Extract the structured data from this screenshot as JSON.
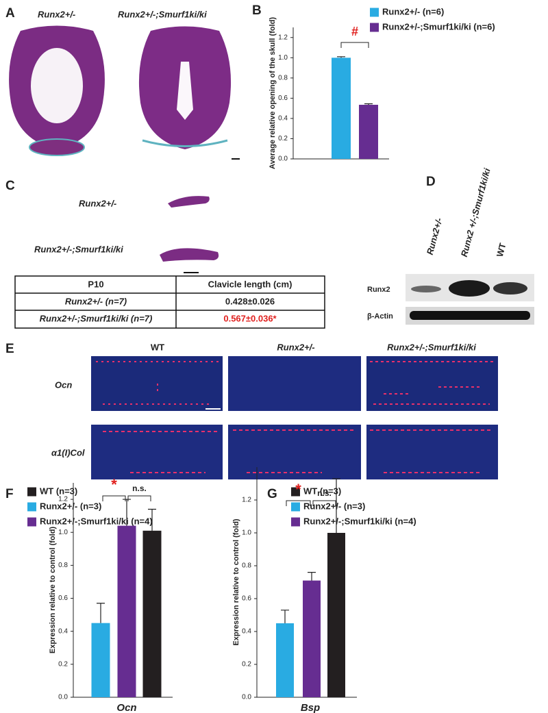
{
  "letters": [
    "A",
    "B",
    "C",
    "D",
    "E",
    "F",
    "G"
  ],
  "panel_a": {
    "labels": [
      "Runx2+/-",
      "Runx2+/-;Smurf1ki/ki"
    ]
  },
  "panel_c": {
    "labels": [
      "Runx2+/-",
      "Runx2+/-;Smurf1ki/ki"
    ]
  },
  "table": {
    "header": [
      "P10",
      "Clavicle length (cm)"
    ],
    "rows": [
      [
        "Runx2+/- (n=7)",
        "0.428±0.026"
      ],
      [
        "Runx2+/-;Smurf1ki/ki (n=7)",
        "0.567±0.036*"
      ]
    ]
  },
  "panel_d": {
    "lanes": [
      "Runx2+/-",
      "Runx2 +/-;Smurf1ki/ki",
      "WT"
    ],
    "rows": [
      "Runx2",
      "β-Actin"
    ]
  },
  "panel_e": {
    "columns": [
      "WT",
      "Runx2+/-",
      "Runx2+/-;Smurf1ki/ki"
    ],
    "rows": [
      "Ocn",
      "α1(I)Col"
    ]
  },
  "chart_data": [
    {
      "type": "bar",
      "ylabel": "Average relative opening of the skull (fold)",
      "series": [
        {
          "name": "Runx2+/- (n=6)",
          "color": "#29abe2",
          "values": [
            1.0
          ],
          "errors": [
            0.01
          ]
        },
        {
          "name": "Runx2+/-;Smurf1ki/ki (n=6)",
          "color": "#662d91",
          "values": [
            0.535
          ],
          "errors": [
            0.01
          ]
        }
      ],
      "ylim": [
        0,
        1.3
      ],
      "yticks": [
        {
          "value": 0,
          "label": "0.0"
        },
        0.2,
        0.4,
        0.6,
        0.8,
        {
          "value": 1,
          "label": "1.0"
        },
        1.2
      ],
      "annotations": [
        "#"
      ]
    },
    {
      "type": "bar",
      "ylabel": "Expression relative to  control (fold)",
      "xlabel": "Ocn",
      "series": [
        {
          "name": "WT (n=3)",
          "color": "#231f20",
          "values": [
            1.01
          ],
          "errors": [
            0.13
          ]
        },
        {
          "name": "Runx2+/- (n=3)",
          "color": "#29abe2",
          "values": [
            0.45
          ],
          "errors": [
            0.12
          ]
        },
        {
          "name": "Runx2+/-;Smurf1ki/ki (n=4)",
          "color": "#662d91",
          "values": [
            1.04
          ],
          "errors": [
            0.16
          ]
        }
      ],
      "ylim": [
        0,
        1.3
      ],
      "yticks": [
        {
          "value": 0,
          "label": "0.0"
        },
        0.2,
        0.4,
        0.6,
        0.8,
        {
          "value": 1,
          "label": "1.0"
        },
        1.2
      ],
      "annotations": [
        "*",
        "n.s."
      ]
    },
    {
      "type": "bar",
      "ylabel": "Expression relative to  control (fold)",
      "xlabel": "Bsp",
      "series": [
        {
          "name": "WT (n=3)",
          "color": "#231f20",
          "values": [
            1.0
          ],
          "errors": [
            0.33
          ]
        },
        {
          "name": "Runx2+/- (n=3)",
          "color": "#29abe2",
          "values": [
            0.45
          ],
          "errors": [
            0.08
          ]
        },
        {
          "name": "Runx2+/-;Smurf1ki/ki (n=4)",
          "color": "#662d91",
          "values": [
            0.71
          ],
          "errors": [
            0.05
          ]
        }
      ],
      "ylim": [
        0,
        1.4
      ],
      "yticks": [
        {
          "value": 0,
          "label": "0.0"
        },
        0.2,
        0.4,
        0.6,
        0.8,
        {
          "value": 1,
          "label": "1.0"
        },
        1.2
      ],
      "annotations": [
        "*",
        "n.s."
      ]
    }
  ]
}
